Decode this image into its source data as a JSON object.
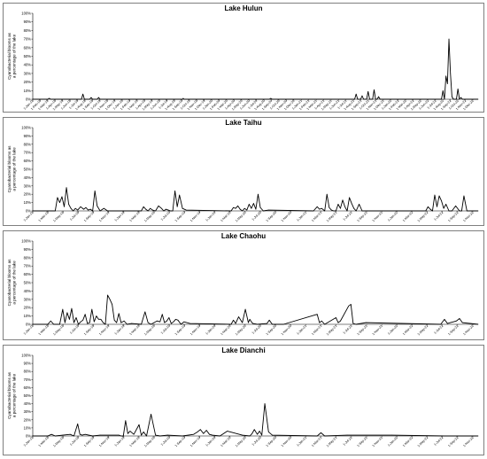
{
  "chart_data": [
    {
      "type": "line",
      "title": "Lake Hulun",
      "ylabel": "Cyanobacterial blooms as\na percentage of the lake",
      "ylim": [
        0,
        100
      ],
      "yticks": [
        "0%",
        "10%",
        "20%",
        "30%",
        "40%",
        "50%",
        "60%",
        "70%",
        "80%",
        "90%",
        "100%"
      ],
      "xticks": [
        "1-Jan-18",
        "1-Feb-18",
        "1-Mar-18",
        "1-Apr-18",
        "1-May-18",
        "1-Jun-18",
        "1-Jul-18",
        "1-Aug-18",
        "1-Sep-18",
        "1-Oct-18",
        "1-Nov-18",
        "1-Dec-18",
        "1-Jan-19",
        "1-Feb-19",
        "1-Mar-19",
        "1-Apr-19",
        "1-May-19",
        "1-Jun-19",
        "1-Jul-19",
        "1-Aug-19",
        "1-Sep-19",
        "1-Oct-19",
        "1-Nov-19",
        "1-Dec-19",
        "1-Jan-20",
        "1-Feb-20",
        "1-Mar-20",
        "1-Apr-20",
        "1-May-20",
        "1-Jun-20",
        "1-Jul-20",
        "1-Aug-20",
        "1-Sep-20",
        "1-Oct-20",
        "1-Nov-20",
        "1-Dec-20",
        "1-Jan-21",
        "1-Feb-21",
        "1-Mar-21",
        "1-Apr-21",
        "1-May-21",
        "1-Jun-21",
        "1-Jul-21",
        "1-Aug-21",
        "1-Sep-21",
        "1-Oct-21",
        "1-Nov-21",
        "1-Dec-21",
        "1-Jan-22",
        "1-Feb-22",
        "1-Mar-22",
        "1-Apr-22",
        "1-May-22",
        "1-Jun-22",
        "1-Jul-22",
        "1-Aug-22",
        "1-Sep-22",
        "1-Oct-22",
        "1-Nov-22",
        "1-Dec-22"
      ],
      "x": [
        0,
        2.0,
        2.2,
        2.4,
        6.5,
        6.7,
        6.9,
        7.6,
        7.8,
        8.0,
        8.6,
        8.8,
        9.0,
        20.0,
        20.1,
        20.2,
        31.6,
        31.8,
        32.0,
        43.0,
        43.2,
        43.4,
        43.8,
        44.0,
        44.2,
        44.6,
        44.8,
        45.0,
        45.4,
        45.6,
        45.8,
        46.0,
        46.2,
        46.4,
        54.6,
        54.8,
        55.0,
        55.2,
        55.4,
        55.6,
        55.8,
        56.0,
        56.2,
        56.6,
        56.8,
        57.0,
        57.2,
        57.4,
        59.5
      ],
      "y": [
        0,
        0,
        1,
        0,
        0,
        6,
        0,
        0,
        2,
        0,
        0,
        2,
        0,
        0,
        1,
        0,
        0,
        1,
        0,
        0,
        6,
        0,
        0,
        4,
        0,
        0,
        9,
        0,
        0,
        11,
        0,
        0,
        3,
        0,
        0,
        10,
        0,
        27,
        18,
        70,
        30,
        3,
        0,
        0,
        12,
        0,
        2,
        0,
        0
      ]
    },
    {
      "type": "line",
      "title": "Lake Taihu",
      "ylabel": "Cyanobacterial blooms as\na percentage of the lake",
      "ylim": [
        0,
        100
      ],
      "yticks": [
        "0%",
        "10%",
        "20%",
        "30%",
        "40%",
        "50%",
        "60%",
        "70%",
        "80%",
        "90%",
        "100%"
      ],
      "xticks": [
        "1-Jan-18",
        "1-Mar-18",
        "1-May-18",
        "1-Jul-18",
        "1-Sep-18",
        "1-Nov-18",
        "1-Jan-19",
        "1-Mar-19",
        "1-May-19",
        "1-Jul-19",
        "1-Sep-19",
        "1-Nov-19",
        "1-Jan-20",
        "1-Mar-20",
        "1-May-20",
        "1-Jul-20",
        "1-Sep-20",
        "1-Nov-20",
        "1-Jan-21",
        "1-Mar-21",
        "1-May-21",
        "1-Jul-21",
        "1-Sep-21",
        "1-Nov-21",
        "1-Jan-22",
        "1-Mar-22",
        "1-May-22",
        "1-Jul-22",
        "1-Sep-22",
        "1-Nov-22"
      ],
      "x": [
        0,
        3.0,
        3.3,
        3.6,
        3.9,
        4.2,
        4.5,
        4.8,
        5.1,
        5.4,
        5.7,
        6.0,
        6.4,
        6.8,
        7.1,
        7.4,
        7.7,
        8.0,
        8.3,
        8.6,
        9.0,
        9.5,
        10.0,
        14.5,
        14.8,
        15.1,
        15.4,
        15.7,
        16.0,
        16.4,
        16.8,
        17.2,
        17.5,
        17.8,
        18.1,
        18.4,
        18.7,
        19.0,
        19.3,
        19.6,
        20.0,
        20.5,
        26.5,
        26.8,
        27.1,
        27.4,
        27.7,
        28.0,
        28.3,
        28.6,
        28.9,
        29.2,
        29.5,
        29.8,
        30.1,
        30.4,
        30.8,
        31.5,
        37.5,
        38.0,
        38.3,
        38.6,
        39.0,
        39.3,
        39.6,
        39.9,
        40.2,
        40.5,
        40.8,
        41.1,
        41.4,
        41.7,
        42.0,
        42.3,
        42.6,
        42.9,
        43.2,
        43.6,
        44.0,
        52.5,
        52.8,
        53.1,
        53.4,
        53.7,
        54.0,
        54.3,
        54.6,
        54.9,
        55.2,
        55.6,
        56.0,
        56.5,
        57.0,
        57.3,
        57.6,
        58.0,
        59.5
      ],
      "y": [
        0,
        0,
        16,
        10,
        17,
        5,
        28,
        8,
        3,
        0,
        3,
        1,
        5,
        2,
        4,
        1,
        2,
        0,
        24,
        6,
        0,
        3,
        0,
        0,
        5,
        2,
        0,
        3,
        1,
        0,
        6,
        3,
        0,
        2,
        1,
        0,
        0,
        24,
        5,
        19,
        3,
        1,
        0,
        4,
        3,
        6,
        2,
        0,
        3,
        1,
        8,
        3,
        9,
        2,
        20,
        4,
        0,
        1,
        0,
        5,
        2,
        3,
        0,
        20,
        4,
        1,
        0,
        0,
        8,
        3,
        13,
        5,
        0,
        16,
        9,
        3,
        0,
        8,
        0,
        0,
        5,
        2,
        0,
        19,
        5,
        18,
        12,
        3,
        8,
        0,
        0,
        6,
        0,
        0,
        18,
        0,
        0
      ]
    },
    {
      "type": "line",
      "title": "Lake Chaohu",
      "ylabel": "Cyanobacterial blooms as\na percentage of the lake",
      "ylim": [
        0,
        100
      ],
      "yticks": [
        "0%",
        "10%",
        "20%",
        "30%",
        "40%",
        "50%",
        "60%",
        "70%",
        "80%",
        "90%",
        "100%"
      ],
      "xticks": [
        "1-Jan-18",
        "1-Mar-18",
        "1-May-18",
        "1-Jul-18",
        "1-Sep-18",
        "1-Nov-18",
        "1-Jan-19",
        "1-Mar-19",
        "1-May-19",
        "1-Jul-19",
        "1-Sep-19",
        "1-Nov-19",
        "1-Jan-20",
        "1-Mar-20",
        "1-May-20",
        "1-Jul-20",
        "1-Sep-20",
        "1-Nov-20",
        "1-Jan-21",
        "1-Mar-21",
        "1-May-21",
        "1-Jul-21",
        "1-Sep-21",
        "1-Nov-21",
        "1-Jan-22",
        "1-Mar-22",
        "1-May-22",
        "1-Jul-22",
        "1-Sep-22",
        "1-Nov-22"
      ],
      "x": [
        0,
        2.0,
        2.4,
        2.8,
        3.2,
        3.6,
        4.0,
        4.3,
        4.6,
        4.9,
        5.2,
        5.5,
        5.8,
        6.1,
        6.4,
        6.7,
        7.0,
        7.3,
        7.6,
        7.9,
        8.2,
        8.5,
        8.8,
        9.1,
        9.4,
        9.7,
        10.0,
        10.3,
        10.6,
        10.9,
        11.2,
        11.5,
        11.8,
        12.2,
        12.6,
        13.2,
        14.5,
        15.0,
        15.4,
        15.8,
        16.2,
        16.6,
        17.0,
        17.3,
        17.6,
        17.9,
        18.2,
        18.5,
        18.8,
        19.1,
        19.4,
        19.8,
        20.2,
        21.0,
        26.5,
        26.8,
        27.1,
        27.5,
        28.0,
        28.4,
        28.8,
        29.0,
        29.2,
        29.4,
        30.0,
        31.3,
        31.6,
        32.0,
        33.5,
        38.0,
        38.3,
        38.6,
        39.0,
        40.5,
        40.8,
        41.1,
        42.2,
        42.5,
        42.8,
        43.2,
        44.5,
        54.5,
        55.0,
        55.4,
        55.8,
        56.2,
        56.6,
        57.0,
        57.4,
        59.5
      ],
      "y": [
        0,
        0,
        4,
        0,
        0,
        0,
        18,
        2,
        14,
        6,
        19,
        2,
        8,
        0,
        3,
        5,
        12,
        1,
        2,
        18,
        3,
        10,
        6,
        6,
        2,
        0,
        35,
        30,
        24,
        5,
        2,
        13,
        2,
        4,
        0,
        1,
        0,
        15,
        2,
        0,
        2,
        4,
        3,
        12,
        2,
        4,
        8,
        1,
        3,
        6,
        5,
        0,
        3,
        1,
        0,
        5,
        1,
        9,
        2,
        18,
        2,
        6,
        3,
        1,
        0,
        1,
        5,
        0,
        0,
        12,
        2,
        4,
        0,
        8,
        2,
        4,
        22,
        24,
        1,
        0,
        2,
        0,
        6,
        1,
        2,
        3,
        4,
        7,
        2,
        0
      ]
    },
    {
      "type": "line",
      "title": "Lake Dianchi",
      "ylabel": "Cyanobacterial blooms as\na percentage of the lake",
      "ylim": [
        0,
        100
      ],
      "yticks": [
        "0%",
        "10%",
        "20%",
        "30%",
        "40%",
        "50%",
        "60%",
        "70%",
        "80%",
        "90%",
        "100%"
      ],
      "xticks": [
        "1-Jan-18",
        "1-Mar-18",
        "1-May-18",
        "1-Jul-18",
        "1-Sep-18",
        "1-Nov-18",
        "1-Jan-19",
        "1-Mar-19",
        "1-May-19",
        "1-Jul-19",
        "1-Sep-19",
        "1-Nov-19",
        "1-Jan-20",
        "1-Mar-20",
        "1-May-20",
        "1-Jul-20",
        "1-Sep-20",
        "1-Nov-20",
        "1-Jan-21",
        "1-Mar-21",
        "1-May-21",
        "1-Jul-21",
        "1-Sep-21",
        "1-Nov-21",
        "1-Jan-22",
        "1-Mar-22",
        "1-May-22",
        "1-Jul-22",
        "1-Sep-22",
        "1-Nov-22"
      ],
      "x": [
        0,
        2.0,
        2.5,
        3.0,
        4.0,
        5.0,
        5.5,
        6.0,
        6.3,
        6.6,
        7.0,
        8.0,
        9.0,
        11.5,
        11.8,
        12.1,
        12.4,
        12.7,
        13.0,
        13.5,
        14.2,
        14.5,
        14.8,
        15.2,
        15.8,
        16.4,
        17.0,
        18.0,
        20.0,
        21.5,
        22.0,
        22.4,
        22.8,
        23.2,
        23.6,
        24.0,
        25.0,
        26.0,
        28.0,
        29.0,
        29.3,
        29.6,
        30.0,
        30.3,
        30.6,
        31.0,
        31.5,
        32.0,
        38.0,
        38.5,
        39.0,
        42.0,
        48.0,
        55.0,
        59.5
      ],
      "y": [
        0,
        0,
        2,
        0,
        1,
        2,
        0,
        15,
        2,
        1,
        2,
        0,
        1,
        1,
        0,
        0,
        19,
        3,
        6,
        2,
        14,
        1,
        5,
        0,
        27,
        1,
        0,
        1,
        0,
        2,
        5,
        8,
        3,
        7,
        2,
        1,
        0,
        6,
        1,
        0,
        3,
        8,
        2,
        6,
        1,
        40,
        5,
        1,
        0,
        4,
        0,
        1,
        1,
        0,
        0
      ]
    }
  ]
}
